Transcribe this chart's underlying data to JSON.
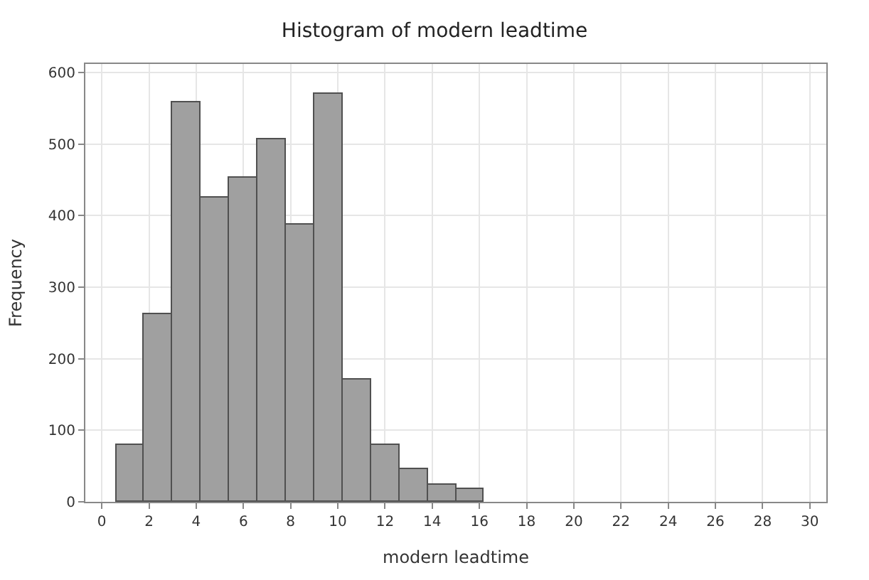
{
  "chart_data": {
    "type": "histogram",
    "title": "Histogram of modern leadtime",
    "xlabel": "modern leadtime",
    "ylabel": "Frequency",
    "bins": [
      0.6,
      1.8,
      3.0,
      4.2,
      5.4,
      6.6,
      7.8,
      9.0,
      10.2,
      11.4,
      12.6,
      13.8,
      15.0,
      16.2
    ],
    "values": [
      80,
      262,
      558,
      425,
      454,
      506,
      388,
      570,
      170,
      80,
      45,
      24,
      18
    ],
    "color": "#a0a0a0",
    "xlim": [
      -0.7,
      30.7
    ],
    "xticks": [
      0,
      2,
      4,
      6,
      8,
      10,
      12,
      14,
      16,
      18,
      20,
      22,
      24,
      26,
      28,
      30
    ],
    "ylim": [
      0,
      612
    ],
    "yticks": [
      0,
      100,
      200,
      300,
      400,
      500,
      600
    ],
    "grid": true
  }
}
